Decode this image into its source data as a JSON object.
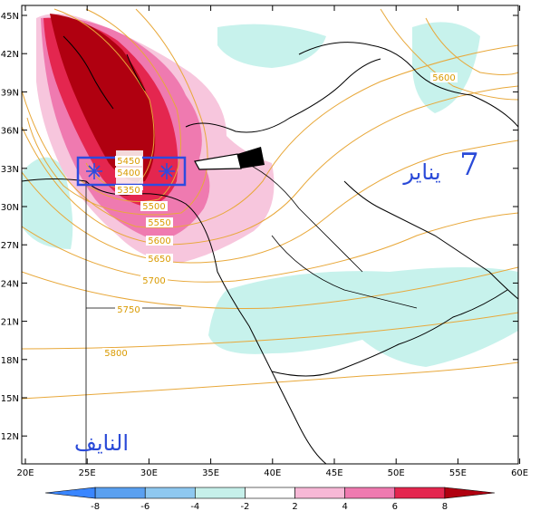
{
  "map": {
    "lat_ticks": [
      "45N",
      "42N",
      "39N",
      "36N",
      "33N",
      "30N",
      "27N",
      "24N",
      "21N",
      "18N",
      "15N",
      "12N"
    ],
    "lon_ticks": [
      "20E",
      "25E",
      "30E",
      "35E",
      "40E",
      "45E",
      "50E",
      "55E",
      "60E"
    ],
    "contour_labels": [
      {
        "text": "5600",
        "kind": "top"
      },
      {
        "text": "5400",
        "kind": "box"
      },
      {
        "text": "5450",
        "kind": "box"
      },
      {
        "text": "5350",
        "kind": "box"
      },
      {
        "text": "5500",
        "kind": "line"
      },
      {
        "text": "5550",
        "kind": "line"
      },
      {
        "text": "5600",
        "kind": "line"
      },
      {
        "text": "5650",
        "kind": "line"
      },
      {
        "text": "5700",
        "kind": "line"
      },
      {
        "text": "5750",
        "kind": "line"
      },
      {
        "text": "5800",
        "kind": "line"
      }
    ],
    "annotations": {
      "date_number": "7",
      "date_month": "يناير",
      "credit": "النايف"
    },
    "colorbar": {
      "ticks": [
        "-8",
        "-6",
        "-4",
        "-2",
        "2",
        "4",
        "6",
        "8"
      ],
      "colors": [
        "#3a86ff",
        "#5aa0f0",
        "#8ec8f0",
        "#c6f0ea",
        "#ffffff",
        "#f7b8d6",
        "#ef7ab0",
        "#e4264f",
        "#b00010"
      ]
    },
    "colors": {
      "contour": "#e8a83a",
      "box": "#2d4be0",
      "text_blue": "#2a4ad8",
      "anomaly_cold": "#c7f2ec"
    }
  }
}
